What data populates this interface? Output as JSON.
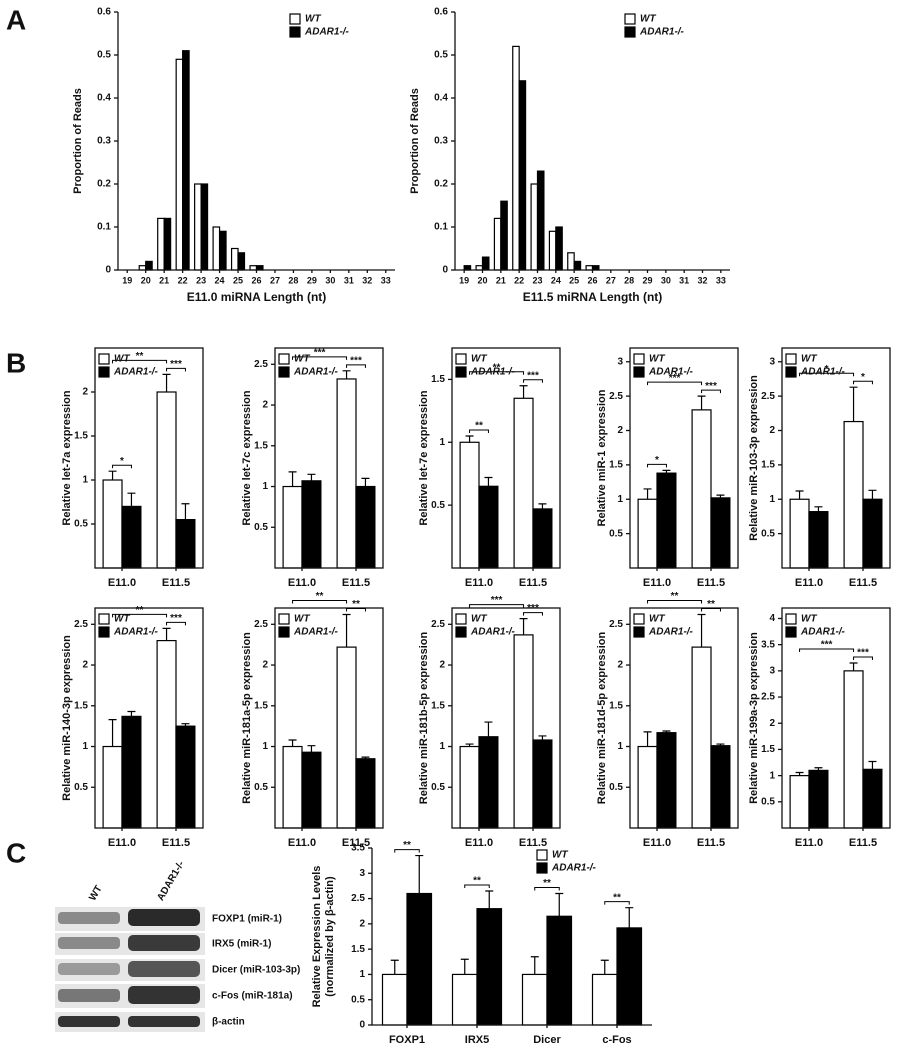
{
  "panel_labels": [
    "A",
    "B",
    "C"
  ],
  "blot": {
    "lanes": [
      "WT",
      "ADAR1-/-"
    ],
    "bands": [
      "FOXP1 (miR-1)",
      "IRX5 (miR-1)",
      "Dicer (miR-103-3p)",
      "c-Fos (miR-181a)",
      "β-actin"
    ]
  },
  "chart_data": [
    {
      "type": "bar",
      "ylabel": "Proportion of Reads",
      "xlabel": "E11.0 miRNA Length (nt)",
      "categories": [
        "19",
        "20",
        "21",
        "22",
        "23",
        "24",
        "25",
        "26",
        "27",
        "28",
        "29",
        "30",
        "31",
        "32",
        "33"
      ],
      "series": [
        {
          "name": "WT",
          "color": "#ffffff",
          "values": [
            0,
            0.01,
            0.12,
            0.49,
            0.2,
            0.1,
            0.05,
            0.01,
            0,
            0,
            0,
            0,
            0,
            0,
            0
          ]
        },
        {
          "name": "ADAR1-/-",
          "color": "#000000",
          "values": [
            0,
            0.02,
            0.12,
            0.51,
            0.2,
            0.09,
            0.04,
            0.01,
            0,
            0,
            0,
            0,
            0,
            0,
            0
          ]
        }
      ],
      "ylim": [
        0,
        0.6
      ],
      "yticks": [
        0,
        0.1,
        0.2,
        0.3,
        0.4,
        0.5,
        0.6
      ],
      "legend": "upper right",
      "frame": false
    },
    {
      "type": "bar",
      "ylabel": "Proportion of Reads",
      "xlabel": "E11.5 miRNA Length (nt)",
      "categories": [
        "19",
        "20",
        "21",
        "22",
        "23",
        "24",
        "25",
        "26",
        "27",
        "28",
        "29",
        "30",
        "31",
        "32",
        "33"
      ],
      "series": [
        {
          "name": "WT",
          "color": "#ffffff",
          "values": [
            0,
            0.01,
            0.12,
            0.52,
            0.2,
            0.09,
            0.04,
            0.01,
            0,
            0,
            0,
            0,
            0,
            0,
            0
          ]
        },
        {
          "name": "ADAR1-/-",
          "color": "#000000",
          "values": [
            0.01,
            0.03,
            0.16,
            0.44,
            0.23,
            0.1,
            0.02,
            0.01,
            0,
            0,
            0,
            0,
            0,
            0,
            0
          ]
        }
      ],
      "ylim": [
        0,
        0.6
      ],
      "yticks": [
        0,
        0.1,
        0.2,
        0.3,
        0.4,
        0.5,
        0.6
      ],
      "legend": "upper right",
      "frame": false
    },
    {
      "type": "bar",
      "ylabel": "Relative let-7a expression",
      "categories": [
        "E11.0",
        "E11.5"
      ],
      "series": [
        {
          "name": "WT",
          "color": "#ffffff",
          "values": [
            1.0,
            2.0
          ],
          "errors": [
            0.1,
            0.2
          ]
        },
        {
          "name": "ADAR1-/-",
          "color": "#000000",
          "values": [
            0.7,
            0.55
          ],
          "errors": [
            0.15,
            0.18
          ]
        }
      ],
      "ylim": [
        0,
        2.5
      ],
      "yticks": [
        0.5,
        1,
        1.5,
        2
      ],
      "legend": "upper left",
      "frame": true,
      "sig_within": [
        "*",
        "***"
      ],
      "sig_across": "**"
    },
    {
      "type": "bar",
      "ylabel": "Relative let-7c expression",
      "categories": [
        "E11.0",
        "E11.5"
      ],
      "series": [
        {
          "name": "WT",
          "color": "#ffffff",
          "values": [
            1.0,
            2.32
          ],
          "errors": [
            0.18,
            0.1
          ]
        },
        {
          "name": "ADAR1-/-",
          "color": "#000000",
          "values": [
            1.07,
            1.0
          ],
          "errors": [
            0.08,
            0.1
          ]
        }
      ],
      "ylim": [
        0,
        2.7
      ],
      "yticks": [
        0.5,
        1,
        1.5,
        2,
        2.5
      ],
      "legend": "upper left",
      "frame": true,
      "sig_within": [
        null,
        "***"
      ],
      "sig_across": "***"
    },
    {
      "type": "bar",
      "ylabel": "Relative let-7e expression",
      "categories": [
        "E11.0",
        "E11.5"
      ],
      "series": [
        {
          "name": "WT",
          "color": "#ffffff",
          "values": [
            1.0,
            1.35
          ],
          "errors": [
            0.05,
            0.1
          ]
        },
        {
          "name": "ADAR1-/-",
          "color": "#000000",
          "values": [
            0.65,
            0.47
          ],
          "errors": [
            0.07,
            0.04
          ]
        }
      ],
      "ylim": [
        0,
        1.75
      ],
      "yticks": [
        0.5,
        1,
        1.5
      ],
      "legend": "upper left",
      "frame": true,
      "sig_within": [
        "**",
        "***"
      ],
      "sig_across": "**"
    },
    {
      "type": "bar",
      "ylabel": "Relative miR-1 expression",
      "categories": [
        "E11.0",
        "E11.5"
      ],
      "series": [
        {
          "name": "WT",
          "color": "#ffffff",
          "values": [
            1.0,
            2.3
          ],
          "errors": [
            0.15,
            0.2
          ]
        },
        {
          "name": "ADAR1-/-",
          "color": "#000000",
          "values": [
            1.38,
            1.02
          ],
          "errors": [
            0.04,
            0.04
          ]
        }
      ],
      "ylim": [
        0,
        3.2
      ],
      "yticks": [
        0.5,
        1,
        1.5,
        2,
        2.5,
        3
      ],
      "legend": "upper left",
      "frame": true,
      "sig_within": [
        "*",
        "***"
      ],
      "sig_across": "***"
    },
    {
      "type": "bar",
      "ylabel": "Relative miR-103-3p expression",
      "categories": [
        "E11.0",
        "E11.5"
      ],
      "series": [
        {
          "name": "WT",
          "color": "#ffffff",
          "values": [
            1.0,
            2.13
          ],
          "errors": [
            0.12,
            0.5
          ]
        },
        {
          "name": "ADAR1-/-",
          "color": "#000000",
          "values": [
            0.82,
            1.0
          ],
          "errors": [
            0.07,
            0.13
          ]
        }
      ],
      "ylim": [
        0,
        3.2
      ],
      "yticks": [
        0.5,
        1,
        1.5,
        2,
        2.5,
        3
      ],
      "legend": "upper left",
      "frame": true,
      "sig_within": [
        null,
        "*"
      ],
      "sig_across": "*"
    },
    {
      "type": "bar",
      "ylabel": "Relative miR-140-3p expression",
      "categories": [
        "E11.0",
        "E11.5"
      ],
      "series": [
        {
          "name": "WT",
          "color": "#ffffff",
          "values": [
            1.0,
            2.3
          ],
          "errors": [
            0.33,
            0.15
          ]
        },
        {
          "name": "ADAR1-/-",
          "color": "#000000",
          "values": [
            1.37,
            1.25
          ],
          "errors": [
            0.06,
            0.03
          ]
        }
      ],
      "ylim": [
        0,
        2.7
      ],
      "yticks": [
        0.5,
        1,
        1.5,
        2,
        2.5
      ],
      "legend": "upper left",
      "frame": true,
      "sig_within": [
        null,
        "***"
      ],
      "sig_across": "**"
    },
    {
      "type": "bar",
      "ylabel": "Relative miR-181a-5p expression",
      "categories": [
        "E11.0",
        "E11.5"
      ],
      "series": [
        {
          "name": "WT",
          "color": "#ffffff",
          "values": [
            1.0,
            2.22
          ],
          "errors": [
            0.08,
            0.4
          ]
        },
        {
          "name": "ADAR1-/-",
          "color": "#000000",
          "values": [
            0.93,
            0.85
          ],
          "errors": [
            0.08,
            0.02
          ]
        }
      ],
      "ylim": [
        0,
        2.7
      ],
      "yticks": [
        0.5,
        1,
        1.5,
        2,
        2.5
      ],
      "legend": "upper left",
      "frame": true,
      "sig_within": [
        null,
        "**"
      ],
      "sig_across": "**"
    },
    {
      "type": "bar",
      "ylabel": "Relative miR-181b-5p expression",
      "categories": [
        "E11.0",
        "E11.5"
      ],
      "series": [
        {
          "name": "WT",
          "color": "#ffffff",
          "values": [
            1.0,
            2.37
          ],
          "errors": [
            0.03,
            0.2
          ]
        },
        {
          "name": "ADAR1-/-",
          "color": "#000000",
          "values": [
            1.12,
            1.08
          ],
          "errors": [
            0.18,
            0.05
          ]
        }
      ],
      "ylim": [
        0,
        2.7
      ],
      "yticks": [
        0.5,
        1,
        1.5,
        2,
        2.5
      ],
      "legend": "upper left",
      "frame": true,
      "sig_within": [
        null,
        "***"
      ],
      "sig_across": "***"
    },
    {
      "type": "bar",
      "ylabel": "Relative miR-181d-5p expression",
      "categories": [
        "E11.0",
        "E11.5"
      ],
      "series": [
        {
          "name": "WT",
          "color": "#ffffff",
          "values": [
            1.0,
            2.22
          ],
          "errors": [
            0.18,
            0.4
          ]
        },
        {
          "name": "ADAR1-/-",
          "color": "#000000",
          "values": [
            1.17,
            1.01
          ],
          "errors": [
            0.02,
            0.02
          ]
        }
      ],
      "ylim": [
        0,
        2.7
      ],
      "yticks": [
        0.5,
        1,
        1.5,
        2,
        2.5
      ],
      "legend": "upper left",
      "frame": true,
      "sig_within": [
        null,
        "**"
      ],
      "sig_across": "**"
    },
    {
      "type": "bar",
      "ylabel": "Relative miR-199a-3p expression",
      "categories": [
        "E11.0",
        "E11.5"
      ],
      "series": [
        {
          "name": "WT",
          "color": "#ffffff",
          "values": [
            1.0,
            3.0
          ],
          "errors": [
            0.06,
            0.15
          ]
        },
        {
          "name": "ADAR1-/-",
          "color": "#000000",
          "values": [
            1.1,
            1.12
          ],
          "errors": [
            0.05,
            0.15
          ]
        }
      ],
      "ylim": [
        0,
        4.2
      ],
      "yticks": [
        0.5,
        1,
        1.5,
        2,
        2.5,
        3,
        3.5,
        4
      ],
      "legend": "upper left",
      "frame": true,
      "sig_within": [
        null,
        "***"
      ],
      "sig_across": "***"
    },
    {
      "type": "bar",
      "ylabel": [
        "Relative Expression Levels",
        "(normalized by β-actin)"
      ],
      "categories": [
        "FOXP1",
        "IRX5",
        "Dicer",
        "c-Fos"
      ],
      "series": [
        {
          "name": "WT",
          "color": "#ffffff",
          "values": [
            1,
            1,
            1,
            1
          ],
          "errors": [
            0.28,
            0.3,
            0.35,
            0.28
          ]
        },
        {
          "name": "ADAR1-/-",
          "color": "#000000",
          "values": [
            2.6,
            2.3,
            2.15,
            1.92
          ],
          "errors": [
            0.75,
            0.35,
            0.45,
            0.4
          ]
        }
      ],
      "ylim": [
        0,
        3.5
      ],
      "yticks": [
        0,
        0.5,
        1,
        1.5,
        2,
        2.5,
        3,
        3.5
      ],
      "legend": "upper right",
      "frame": false,
      "sig_within": [
        "**",
        "**",
        "**",
        "**"
      ]
    }
  ]
}
